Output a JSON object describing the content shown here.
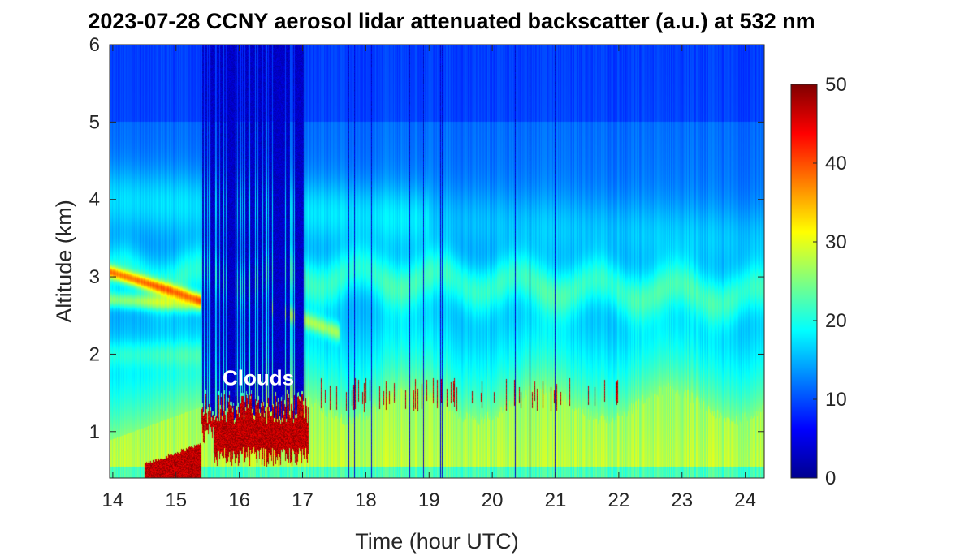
{
  "chart_data": {
    "type": "heatmap",
    "title": "2023-07-28 CCNY aerosol lidar attenuated backscatter (a.u.) at 532 nm",
    "xlabel": "Time (hour UTC)",
    "ylabel": "Altitude (km)",
    "xlim": [
      13.95,
      24.3
    ],
    "ylim": [
      0.4,
      6
    ],
    "x_ticks": [
      14,
      15,
      16,
      17,
      18,
      19,
      20,
      21,
      22,
      23,
      24
    ],
    "y_ticks": [
      1,
      2,
      3,
      4,
      5,
      6
    ],
    "colorbar": {
      "colormap": "jet",
      "range": [
        0,
        50
      ],
      "ticks": [
        0,
        10,
        20,
        30,
        40,
        50
      ]
    },
    "annotations": [
      {
        "text": "Clouds",
        "x": 16.3,
        "y": 1.6
      }
    ],
    "features": {
      "cloud_layer": {
        "x_range": [
          15.4,
          22.2
        ],
        "base_km": 0.8,
        "top_km": 1.7,
        "value": 50
      },
      "boundary_layer": {
        "top_km": 1.5,
        "value": 28
      },
      "elevated_aerosol_layer": {
        "x_range": [
          13.95,
          15.4
        ],
        "altitude_km": [
          2.6,
          3.1
        ],
        "value": 40
      },
      "free_troposphere_value": 11,
      "signal_dropout_region": {
        "x_range": [
          15.4,
          17.05
        ],
        "value": 2
      }
    }
  }
}
